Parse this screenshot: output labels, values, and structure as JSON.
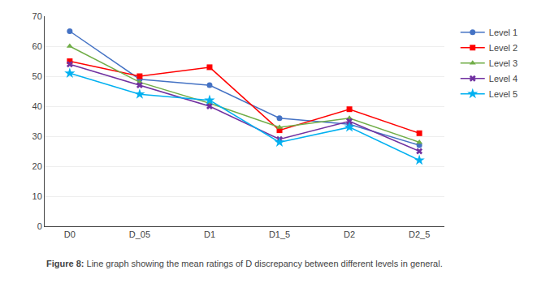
{
  "chart_data": {
    "type": "line",
    "categories": [
      "D0",
      "D_05",
      "D1",
      "D1_5",
      "D2",
      "D2_5"
    ],
    "series": [
      {
        "name": "Level 1",
        "values": [
          65,
          49,
          47,
          36,
          34,
          27
        ],
        "color": "#4472C4",
        "marker": "circle"
      },
      {
        "name": "Level 2",
        "values": [
          55,
          50,
          53,
          32,
          39,
          31
        ],
        "color": "#FF0000",
        "marker": "square"
      },
      {
        "name": "Level 3",
        "values": [
          60,
          48,
          41,
          33,
          36,
          28
        ],
        "color": "#70AD47",
        "marker": "triangle-up"
      },
      {
        "name": "Level 4",
        "values": [
          54,
          47,
          40,
          29,
          35,
          25
        ],
        "color": "#7030A0",
        "marker": "x"
      },
      {
        "name": "Level 5",
        "values": [
          51,
          44,
          42,
          28,
          33,
          22
        ],
        "color": "#00B0F0",
        "marker": "star"
      }
    ],
    "ylim": [
      0,
      70
    ],
    "yticks": [
      0,
      10,
      20,
      30,
      40,
      50,
      60,
      70
    ],
    "grid": "y",
    "legend": "right",
    "annotations": [
      "Figure 8:",
      "Line graph showing the mean ratings of D discrepancy between different levels in general."
    ]
  }
}
